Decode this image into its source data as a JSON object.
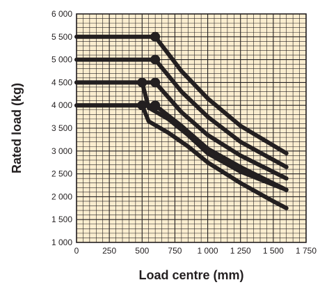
{
  "chart_data": {
    "type": "line",
    "xlabel": "Load centre (mm)",
    "ylabel": "Rated load (kg)",
    "xlim": [
      0,
      1750
    ],
    "ylim": [
      1000,
      6000
    ],
    "x_ticks": [
      0,
      250,
      500,
      750,
      1000,
      1250,
      1500,
      1750
    ],
    "x_tick_labels": [
      "0",
      "250",
      "500",
      "750",
      "1 000",
      "1 250",
      "1 500",
      "1 750"
    ],
    "y_ticks": [
      1000,
      1500,
      2000,
      2500,
      3000,
      3500,
      4000,
      4500,
      5000,
      5500,
      6000
    ],
    "y_tick_labels": [
      "1 000",
      "1 500",
      "2 000",
      "2 500",
      "3 000",
      "3 500",
      "4 000",
      "4 500",
      "5 000",
      "5 500",
      "6 000"
    ],
    "grid": true,
    "grid_color": "#fbeed0",
    "grid_line_color": "#231f20",
    "line_color": "#231f20",
    "series": [
      {
        "x": [
          0,
          600,
          800,
          1000,
          1250,
          1600
        ],
        "y": [
          5500,
          5500,
          4750,
          4150,
          3550,
          2950
        ],
        "marker_x": 600
      },
      {
        "x": [
          0,
          600,
          800,
          1000,
          1250,
          1600
        ],
        "y": [
          5000,
          5000,
          4300,
          3750,
          3200,
          2650
        ],
        "marker_x": 600
      },
      {
        "x": [
          0,
          600,
          800,
          1000,
          1250,
          1600
        ],
        "y": [
          4500,
          4500,
          3850,
          3350,
          2900,
          2400
        ],
        "marker_x": 600
      },
      {
        "x": [
          0,
          500,
          550,
          700,
          850,
          1000,
          1250,
          1600
        ],
        "y": [
          4500,
          4500,
          3950,
          3700,
          3350,
          2950,
          2550,
          2150
        ],
        "marker_x": 500
      },
      {
        "x": [
          0,
          500,
          550,
          700,
          850,
          1000,
          1250,
          1500,
          1600
        ],
        "y": [
          4000,
          4000,
          3650,
          3400,
          3100,
          2750,
          2300,
          1900,
          1750
        ],
        "marker_x": 500
      },
      {
        "x": [
          0,
          600,
          800,
          1000,
          1250,
          1600
        ],
        "y": [
          4000,
          4000,
          3550,
          3050,
          2650,
          2150
        ],
        "marker_x": 600
      }
    ]
  }
}
